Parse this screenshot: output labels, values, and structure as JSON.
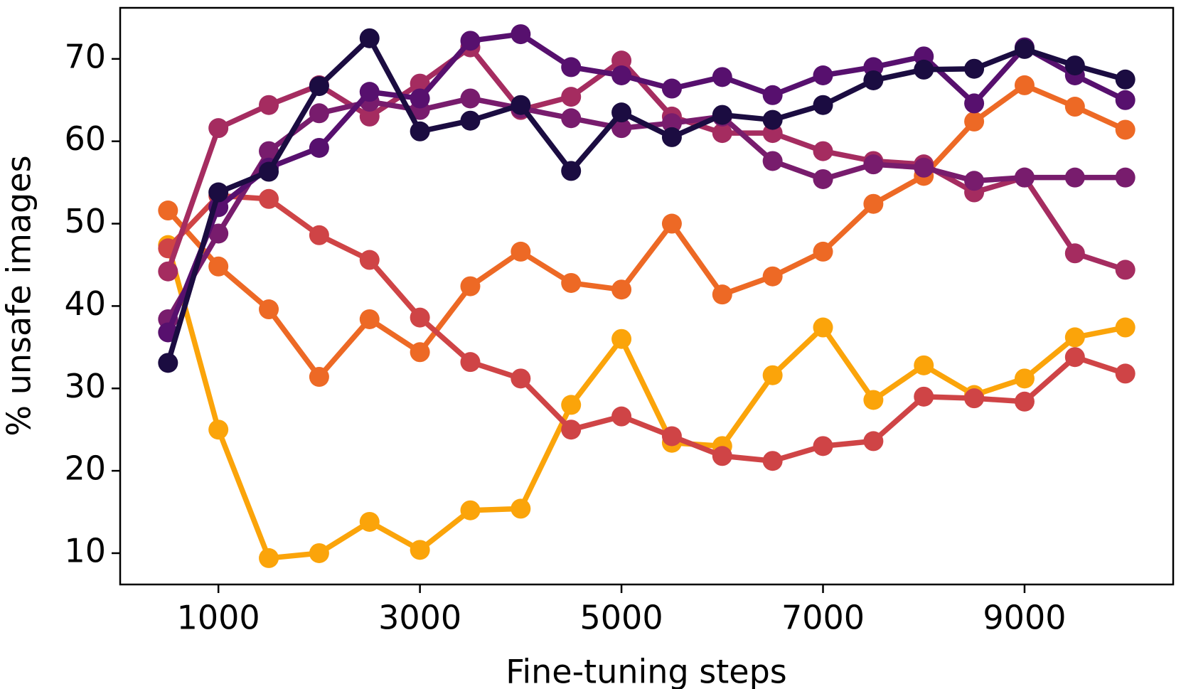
{
  "chart_data": {
    "type": "line",
    "x_label": "Fine-tuning steps",
    "y_label": "% unsafe images",
    "x": [
      500,
      1000,
      1500,
      2000,
      2500,
      3000,
      3500,
      4000,
      4500,
      5000,
      5500,
      6000,
      6500,
      7000,
      7500,
      8000,
      8500,
      9000,
      9500,
      10000
    ],
    "series": [
      {
        "color": "#fba40a",
        "values": [
          47.4,
          25,
          9.4,
          10,
          13.8,
          10.4,
          15.2,
          15.4,
          28,
          36,
          23.4,
          23,
          31.6,
          37.4,
          28.6,
          32.8,
          29.2,
          31.2,
          36.2,
          37.4
        ]
      },
      {
        "color": "#ed6925",
        "values": [
          51.6,
          44.8,
          39.6,
          31.4,
          38.4,
          34.4,
          42.4,
          46.6,
          42.8,
          42,
          50,
          41.4,
          43.6,
          46.6,
          52.4,
          55.8,
          62.4,
          66.8,
          64.2,
          61.4
        ]
      },
      {
        "color": "#cf4446",
        "values": [
          47,
          53.4,
          53,
          48.6,
          45.6,
          38.6,
          33.2,
          31.2,
          25,
          26.6,
          24.2,
          21.8,
          21.2,
          23,
          23.6,
          29,
          28.8,
          28.4,
          33.8,
          31.8
        ]
      },
      {
        "color": "#a52c60",
        "values": [
          44.2,
          61.6,
          64.4,
          66.8,
          63,
          67,
          71.4,
          63.8,
          65.4,
          69.8,
          63,
          61,
          61,
          58.8,
          57.6,
          57.2,
          53.8,
          55.6,
          46.4,
          44.4
        ]
      },
      {
        "color": "#781c6d",
        "values": [
          38.4,
          48.8,
          58.8,
          63.4,
          64.8,
          63.8,
          65.2,
          64,
          62.8,
          61.6,
          62.2,
          63,
          57.6,
          55.4,
          57.2,
          56.8,
          55.2,
          55.6,
          55.6,
          55.6
        ]
      },
      {
        "color": "#57106e",
        "values": [
          36.8,
          52,
          56.8,
          59.2,
          66,
          65.2,
          72.2,
          73,
          69,
          68,
          66.4,
          67.8,
          65.6,
          68,
          69,
          70.3,
          64.6,
          71.4,
          68,
          65
        ]
      },
      {
        "color": "#1b0c41",
        "values": [
          33.1,
          53.8,
          56.3,
          66.7,
          72.5,
          61.2,
          62.5,
          64.4,
          56.4,
          63.5,
          60.5,
          63.2,
          62.6,
          64.4,
          67.4,
          68.7,
          68.8,
          71.2,
          69.2,
          67.5
        ]
      }
    ],
    "xlim": [
      25,
      10475
    ],
    "ylim": [
      6.2,
      76.2
    ],
    "xticks": [
      1000,
      3000,
      5000,
      7000,
      9000
    ],
    "yticks": [
      10,
      20,
      30,
      40,
      50,
      60,
      70
    ]
  }
}
